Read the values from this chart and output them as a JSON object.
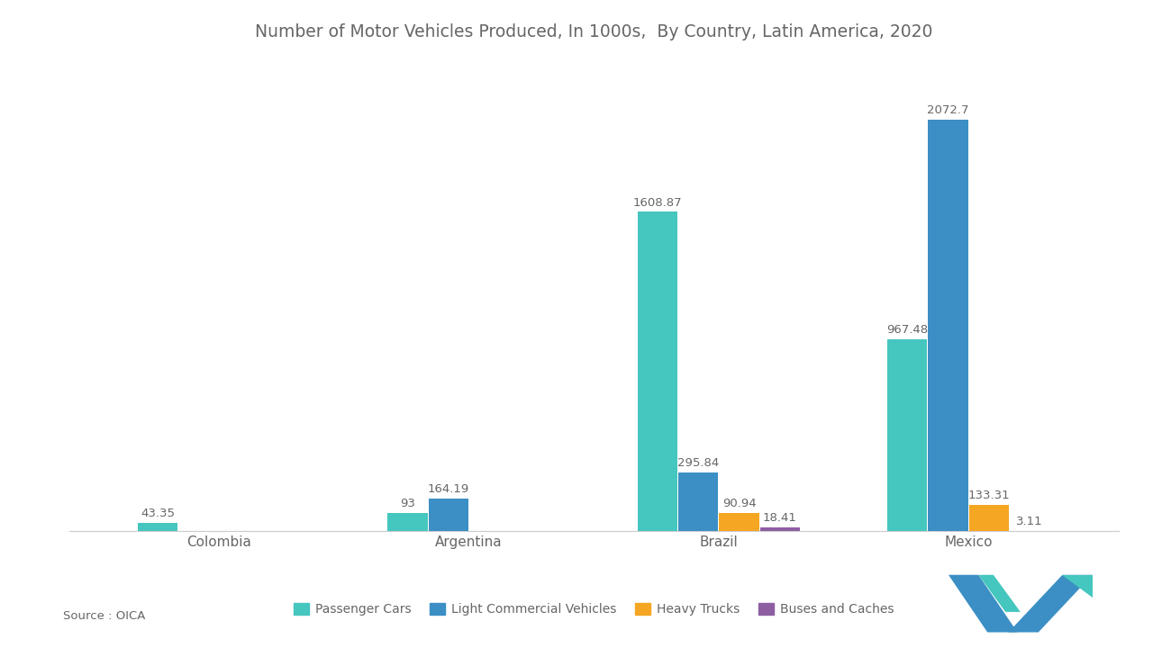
{
  "title": "Number of Motor Vehicles Produced, In 1000s,  By Country, Latin America, 2020",
  "countries": [
    "Colombia",
    "Argentina",
    "Brazil",
    "Mexico"
  ],
  "series": {
    "Passenger Cars": [
      43.35,
      93.0,
      1608.87,
      967.48
    ],
    "Light Commercial Vehicles": [
      0,
      164.19,
      295.84,
      2072.7
    ],
    "Heavy Trucks": [
      0,
      0,
      90.94,
      133.31
    ],
    "Buses and Caches": [
      0,
      0,
      18.41,
      3.11
    ]
  },
  "colors": {
    "Passenger Cars": "#45C6BE",
    "Light Commercial Vehicles": "#3B8FC4",
    "Heavy Trucks": "#F5A623",
    "Buses and Caches": "#8E5EA2"
  },
  "bar_width": 0.16,
  "ylim": [
    0,
    2350
  ],
  "source": "Source : OICA",
  "background_color": "#FFFFFF",
  "text_color": "#666666",
  "title_fontsize": 13.5,
  "tick_fontsize": 11,
  "legend_fontsize": 10,
  "value_fontsize": 9.5,
  "logo_color1": "#3B8FC4",
  "logo_color2": "#45C6BE"
}
